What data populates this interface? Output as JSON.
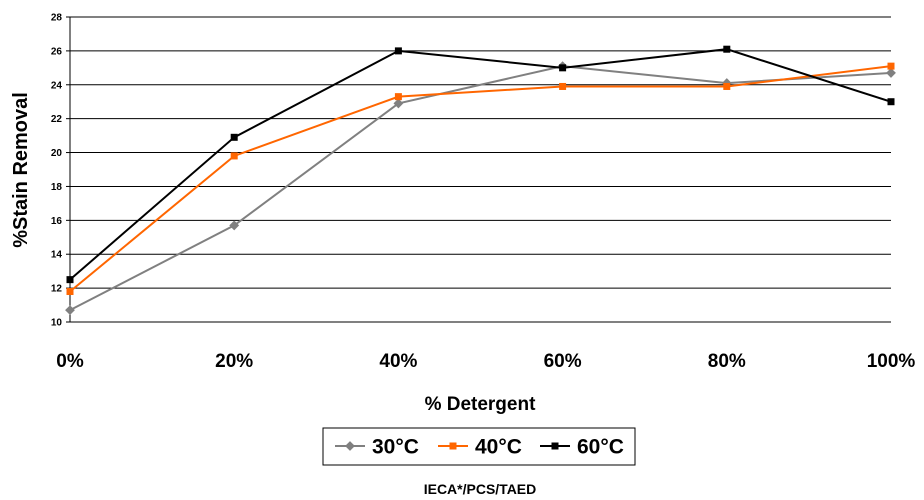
{
  "chart_data": {
    "type": "line",
    "categories": [
      "0%",
      "20%",
      "40%",
      "60%",
      "80%",
      "100%"
    ],
    "series": [
      {
        "name": "30°C",
        "color": "#808080",
        "marker": "diamond",
        "values": [
          10.7,
          15.7,
          22.9,
          25.1,
          24.1,
          24.7
        ]
      },
      {
        "name": "40°C",
        "color": "#ff6600",
        "marker": "square",
        "values": [
          11.8,
          19.8,
          23.3,
          23.9,
          23.9,
          25.1
        ]
      },
      {
        "name": "60°C",
        "color": "#000000",
        "marker": "square",
        "values": [
          12.5,
          20.9,
          26.0,
          25.0,
          26.1,
          23.0
        ]
      }
    ],
    "title": "",
    "xlabel": "% Detergent",
    "ylabel": "%Stain Removal",
    "ylim": [
      10,
      28
    ],
    "yticks": [
      "10",
      "12",
      "14",
      "16",
      "18",
      "20",
      "22",
      "24",
      "26",
      "28"
    ],
    "grid": true,
    "legend_position": "bottom",
    "caption": "IECA*/PCS/TAED"
  }
}
